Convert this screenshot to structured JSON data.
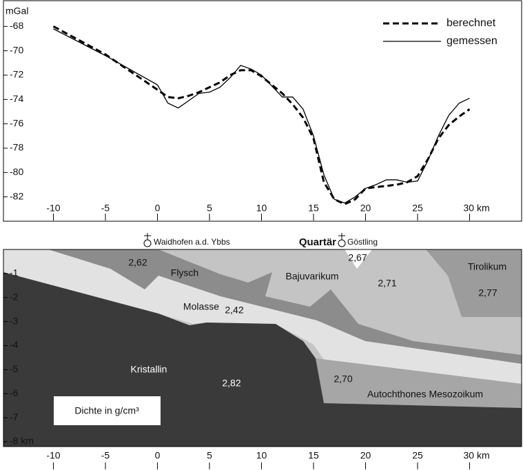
{
  "chart_data": [
    {
      "type": "line",
      "y_label": "mGal",
      "x": [
        -10,
        -5,
        0,
        1,
        2,
        3,
        4,
        5,
        6,
        7,
        8,
        9,
        10,
        11,
        12,
        13,
        14,
        15,
        16,
        17,
        18,
        19,
        20,
        21,
        22,
        23,
        24,
        25,
        26,
        27,
        28,
        29,
        30
      ],
      "series": [
        {
          "name": "berechnet",
          "color": "#000000",
          "dash": true,
          "values": [
            -68.0,
            -70.3,
            -73.2,
            -73.8,
            -73.9,
            -73.7,
            -73.4,
            -73.0,
            -72.6,
            -72.0,
            -71.6,
            -71.6,
            -72.1,
            -72.8,
            -73.5,
            -74.4,
            -75.5,
            -77.2,
            -80.8,
            -82.2,
            -82.6,
            -82.2,
            -81.3,
            -81.2,
            -81.1,
            -81.0,
            -80.8,
            -80.3,
            -78.9,
            -77.2,
            -76.1,
            -75.4,
            -74.8
          ]
        },
        {
          "name": "gemessen",
          "color": "#000000",
          "dash": false,
          "values": [
            -68.2,
            -70.4,
            -72.8,
            -74.3,
            -74.7,
            -74.1,
            -73.5,
            -73.4,
            -73.0,
            -72.2,
            -71.2,
            -71.5,
            -72.0,
            -72.9,
            -73.8,
            -73.8,
            -74.8,
            -77.0,
            -80.2,
            -82.2,
            -82.5,
            -82.0,
            -81.3,
            -81.0,
            -80.6,
            -80.6,
            -80.8,
            -80.7,
            -79.0,
            -77.0,
            -75.3,
            -74.3,
            -73.9
          ]
        }
      ],
      "xlim": [
        -14.8,
        35
      ],
      "ylim": [
        -66,
        -84
      ],
      "xticks": [
        -10,
        -5,
        0,
        5,
        10,
        15,
        20,
        25,
        {
          "value": 30,
          "label": "30 km"
        }
      ],
      "yticks": [
        -68,
        -70,
        -72,
        -74,
        -76,
        -78,
        -80,
        -82
      ],
      "legend": "upper right"
    },
    {
      "type": "cross-section",
      "xlim": [
        -14.8,
        35
      ],
      "ylim": [
        0,
        -8.2
      ],
      "xticks": [
        -10,
        -5,
        0,
        5,
        10,
        15,
        20,
        25,
        {
          "value": 30,
          "label": "30 km"
        }
      ],
      "yticks": [
        -1,
        -2,
        -3,
        -4,
        -5,
        -6,
        -7,
        {
          "value": -8,
          "label": "-8 km"
        }
      ],
      "places": [
        "Waidhofen a.d. Ybbs",
        "Göstling"
      ],
      "quaternary": "Quartär",
      "units": [
        "Flysch",
        "Bajuvarikum",
        "Tirolikum",
        "Molasse",
        "Kristallin",
        "Autochthones Mesozoikum"
      ],
      "densities": [
        "2,62",
        "2,67",
        "2,71",
        "2,77",
        "2,42",
        "2,82",
        "2,70"
      ],
      "density_note": "Dichte in g/cm³"
    }
  ]
}
